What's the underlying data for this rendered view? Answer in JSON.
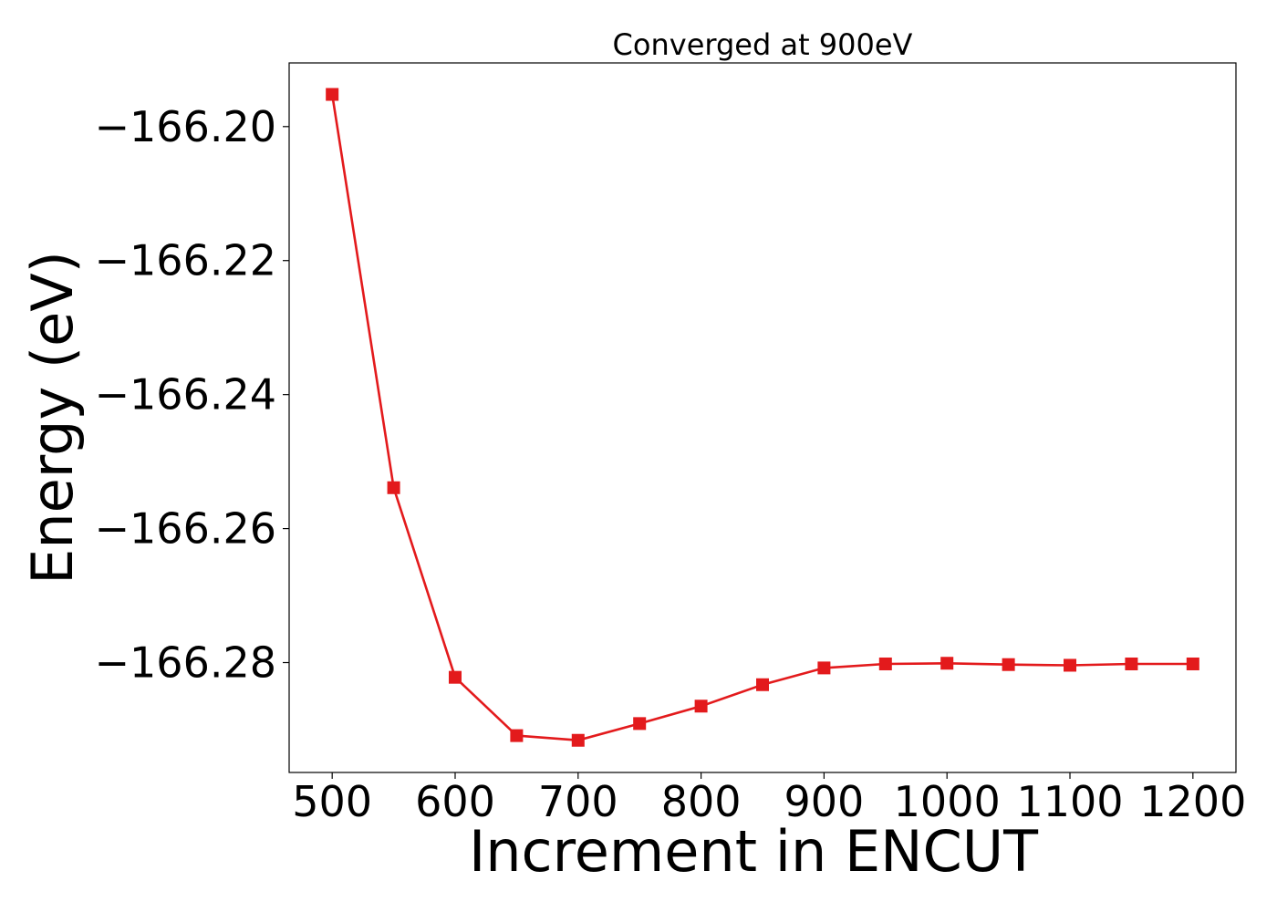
{
  "chart_data": {
    "type": "line",
    "title": "Converged at 900eV",
    "xlabel": "Increment in ENCUT",
    "ylabel": "Energy (eV)",
    "xlim": [
      465,
      1235
    ],
    "ylim": [
      -166.2964,
      -166.1905
    ],
    "xticks": [
      500,
      600,
      700,
      800,
      900,
      1000,
      1100,
      1200
    ],
    "xtick_labels": [
      "500",
      "600",
      "700",
      "800",
      "900",
      "1000",
      "1100",
      "1200"
    ],
    "yticks": [
      -166.2,
      -166.22,
      -166.24,
      -166.26,
      -166.28
    ],
    "ytick_labels": [
      "−166.20",
      "−166.22",
      "−166.24",
      "−166.26",
      "−166.28"
    ],
    "grid": false,
    "series": [
      {
        "marker": "square",
        "color": "#e31a1c",
        "x": [
          500,
          550,
          600,
          650,
          700,
          750,
          800,
          850,
          900,
          950,
          1000,
          1050,
          1100,
          1150,
          1200
        ],
        "y": [
          -166.1952,
          -166.2539,
          -166.2822,
          -166.2909,
          -166.2916,
          -166.2891,
          -166.2865,
          -166.2833,
          -166.2808,
          -166.2802,
          -166.2801,
          -166.2803,
          -166.2804,
          -166.2802,
          -166.2802
        ]
      }
    ]
  }
}
